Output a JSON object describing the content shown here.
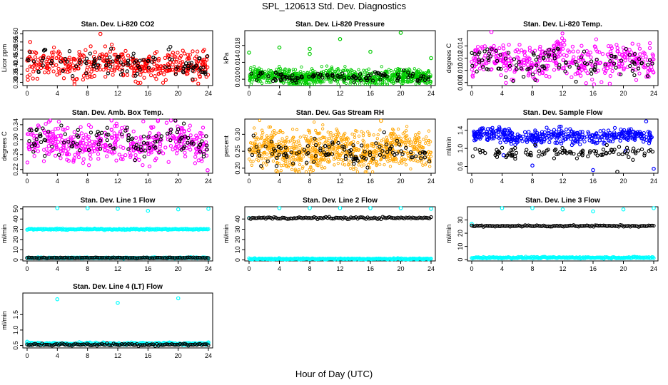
{
  "page": {
    "title": "SPL_120613  Std. Dev. Diagnostics",
    "xlabel": "Hour of Day (UTC)"
  },
  "chart_data": [
    {
      "type": "scatter",
      "title": "Stan. Dev. Li-820 CO2",
      "xlabel": "",
      "ylabel": "Licor ppm",
      "xlim": [
        0,
        24
      ],
      "ylim": [
        0.28,
        0.62
      ],
      "xticks": [
        0,
        4,
        8,
        12,
        16,
        20,
        24
      ],
      "yticks": [
        0.3,
        0.35,
        0.4,
        0.45,
        0.5,
        0.55,
        0.6
      ],
      "ytick_labels": [
        "0.30",
        "0.35",
        "0.40",
        "0.45",
        "0.50",
        "0.55",
        "0.60"
      ],
      "grid": false,
      "legend": "none",
      "series": [
        {
          "color": "#ff0000",
          "pattern": {
            "kind": "noise",
            "center": 0.41,
            "spread": 0.045,
            "count": 420
          },
          "extra_points": [
            [
              0.4,
              0.55
            ],
            [
              9.7,
              0.6
            ]
          ]
        },
        {
          "color": "#000000",
          "pattern": {
            "kind": "noise",
            "center": 0.41,
            "spread": 0.04,
            "count": 110
          }
        }
      ]
    },
    {
      "type": "scatter",
      "title": "Stan. Dev. Li-820 Pressure",
      "xlabel": "",
      "ylabel": "kPa",
      "xlim": [
        0,
        24
      ],
      "ylim": [
        0.0085,
        0.0215
      ],
      "xticks": [
        0,
        4,
        8,
        12,
        16,
        20,
        24
      ],
      "yticks": [
        0.01,
        0.014,
        0.018
      ],
      "ytick_labels": [
        "0.010",
        "0.014",
        "0.018"
      ],
      "grid": false,
      "legend": "none",
      "series": [
        {
          "color": "#00cc00",
          "pattern": {
            "kind": "band",
            "center": 0.0106,
            "spread": 0.0009,
            "count": 900
          },
          "extra_points": [
            [
              0,
              0.0163
            ],
            [
              4,
              0.0175
            ],
            [
              8,
              0.0172
            ],
            [
              8,
              0.016
            ],
            [
              12,
              0.0195
            ],
            [
              16,
              0.0165
            ],
            [
              20,
              0.021
            ],
            [
              24,
              0.015
            ]
          ]
        },
        {
          "color": "#000000",
          "pattern": {
            "kind": "noise",
            "center": 0.0105,
            "spread": 0.0006,
            "count": 110
          }
        }
      ]
    },
    {
      "type": "scatter",
      "title": "Stan. Dev. Li-820 Temp.",
      "xlabel": "",
      "ylabel": "degrees C",
      "xlim": [
        0,
        24
      ],
      "ylim": [
        0.0075,
        0.0165
      ],
      "xticks": [
        0,
        4,
        8,
        12,
        16,
        20,
        24
      ],
      "yticks": [
        0.008,
        0.01,
        0.012,
        0.014
      ],
      "ytick_labels": [
        "0.008",
        "0.010",
        "0.012",
        "0.014"
      ],
      "grid": false,
      "legend": "none",
      "series": [
        {
          "color": "#ff00ff",
          "pattern": {
            "kind": "noise",
            "center": 0.0116,
            "spread": 0.0014,
            "count": 420
          },
          "extra_points": [
            [
              2.6,
              0.0163
            ],
            [
              18.2,
              0.0078
            ]
          ]
        },
        {
          "color": "#000000",
          "pattern": {
            "kind": "noise",
            "center": 0.0113,
            "spread": 0.0012,
            "count": 110
          }
        }
      ]
    },
    {
      "type": "scatter",
      "title": "Stan. Dev. Amb. Box Temp.",
      "xlabel": "",
      "ylabel": "degrees C",
      "xlim": [
        0,
        24
      ],
      "ylim": [
        0.21,
        0.355
      ],
      "xticks": [
        0,
        4,
        8,
        12,
        16,
        20,
        24
      ],
      "yticks": [
        0.22,
        0.26,
        0.3,
        0.34
      ],
      "ytick_labels": [
        "0.22",
        "0.26",
        "0.30",
        "0.34"
      ],
      "grid": false,
      "legend": "none",
      "series": [
        {
          "color": "#ff00ff",
          "pattern": {
            "kind": "noise",
            "center": 0.29,
            "spread": 0.025,
            "count": 420
          },
          "extra_points": [
            [
              23.9,
              0.218
            ]
          ]
        },
        {
          "color": "#000000",
          "pattern": {
            "kind": "noise",
            "center": 0.295,
            "spread": 0.02,
            "count": 110
          }
        }
      ]
    },
    {
      "type": "scatter",
      "title": "Stan. Dev. Gas Stream RH",
      "xlabel": "",
      "ylabel": "percent",
      "xlim": [
        0,
        24
      ],
      "ylim": [
        0.185,
        0.345
      ],
      "xticks": [
        0,
        4,
        8,
        12,
        16,
        20,
        24
      ],
      "yticks": [
        0.2,
        0.25,
        0.3
      ],
      "ytick_labels": [
        "0.20",
        "0.25",
        "0.30"
      ],
      "grid": false,
      "legend": "none",
      "series": [
        {
          "color": "#ffa500",
          "pattern": {
            "kind": "band",
            "center": 0.255,
            "spread": 0.028,
            "count": 900
          },
          "extra_points": [
            [
              17.4,
              0.34
            ],
            [
              3.6,
              0.192
            ]
          ]
        },
        {
          "color": "#000000",
          "pattern": {
            "kind": "noise",
            "center": 0.245,
            "spread": 0.018,
            "count": 110
          }
        }
      ]
    },
    {
      "type": "scatter",
      "title": "Stan. Dev. Sample Flow",
      "xlabel": "",
      "ylabel": "ml/min",
      "xlim": [
        0,
        24
      ],
      "ylim": [
        0.45,
        1.65
      ],
      "xticks": [
        0,
        4,
        8,
        12,
        16,
        20,
        24
      ],
      "yticks": [
        0.6,
        1.0,
        1.4
      ],
      "ytick_labels": [
        "0.6",
        "1.0",
        "1.4"
      ],
      "grid": false,
      "legend": "none",
      "series": [
        {
          "color": "#0000ff",
          "pattern": {
            "kind": "noise",
            "center": 1.27,
            "spread": 0.08,
            "count": 420
          },
          "extra_points": [
            [
              16,
              0.52
            ],
            [
              8,
              0.62
            ],
            [
              24,
              0.55
            ],
            [
              20.3,
              0.95
            ],
            [
              4.2,
              0.85
            ],
            [
              23,
              1.6
            ]
          ]
        },
        {
          "color": "#000000",
          "pattern": {
            "kind": "noise",
            "center": 0.92,
            "spread": 0.07,
            "count": 110
          },
          "extra_points": [
            [
              19.2,
              0.48
            ]
          ]
        }
      ]
    },
    {
      "type": "scatter",
      "title": "Stan. Dev. Line 1 Flow",
      "xlabel": "",
      "ylabel": "ml/min",
      "xlim": [
        0,
        24
      ],
      "ylim": [
        -1,
        52
      ],
      "xticks": [
        0,
        4,
        8,
        12,
        16,
        20,
        24
      ],
      "yticks": [
        0,
        10,
        20,
        30,
        40,
        50
      ],
      "ytick_labels": [
        "0",
        "10",
        "20",
        "30",
        "40",
        "50"
      ],
      "grid": false,
      "legend": "none",
      "series": [
        {
          "color": "#00ffff",
          "pattern": {
            "kind": "line",
            "center": 30,
            "spread": 0.3,
            "count": 200
          },
          "extra_points": [
            [
              4,
              51
            ],
            [
              8,
              50.5
            ],
            [
              12,
              50
            ],
            [
              16,
              48
            ],
            [
              20,
              49.5
            ],
            [
              24,
              50
            ]
          ]
        },
        {
          "color": "#00ffff",
          "pattern": {
            "kind": "line",
            "center": 2,
            "spread": 0.3,
            "count": 200
          }
        },
        {
          "color": "#000000",
          "pattern": {
            "kind": "line",
            "center": 2,
            "spread": 0.2,
            "count": 110
          }
        }
      ]
    },
    {
      "type": "scatter",
      "title": "Stan. Dev. Line 2 Flow",
      "xlabel": "",
      "ylabel": "ml/min",
      "xlim": [
        0,
        24
      ],
      "ylim": [
        -1,
        52
      ],
      "xticks": [
        0,
        4,
        8,
        12,
        16,
        20,
        24
      ],
      "yticks": [
        0,
        10,
        20,
        30,
        40
      ],
      "ytick_labels": [
        "0",
        "10",
        "20",
        "30",
        "40"
      ],
      "grid": false,
      "legend": "none",
      "series": [
        {
          "color": "#00ffff",
          "pattern": {
            "kind": "line",
            "center": 1,
            "spread": 0.3,
            "count": 220
          },
          "extra_points": [
            [
              0,
              41
            ],
            [
              4,
              51
            ],
            [
              8,
              51
            ],
            [
              12,
              51
            ],
            [
              16,
              51
            ],
            [
              20,
              51
            ],
            [
              24,
              50
            ]
          ]
        },
        {
          "color": "#000000",
          "pattern": {
            "kind": "line",
            "center": 41,
            "spread": 0.5,
            "count": 110
          }
        }
      ]
    },
    {
      "type": "scatter",
      "title": "Stan. Dev. Line 3 Flow",
      "xlabel": "",
      "ylabel": "ml/min",
      "xlim": [
        0,
        24
      ],
      "ylim": [
        -1,
        40
      ],
      "xticks": [
        0,
        4,
        8,
        12,
        16,
        20,
        24
      ],
      "yticks": [
        0,
        10,
        20,
        30
      ],
      "ytick_labels": [
        "0",
        "10",
        "20",
        "30"
      ],
      "grid": false,
      "legend": "none",
      "series": [
        {
          "color": "#00ffff",
          "pattern": {
            "kind": "line",
            "center": 1.5,
            "spread": 0.3,
            "count": 220
          },
          "extra_points": [
            [
              0,
              27
            ],
            [
              4,
              39
            ],
            [
              8,
              39
            ],
            [
              12,
              38
            ],
            [
              16,
              36.5
            ],
            [
              20,
              38
            ],
            [
              24,
              39
            ]
          ]
        },
        {
          "color": "#000000",
          "pattern": {
            "kind": "line",
            "center": 25.5,
            "spread": 0.3,
            "count": 110
          }
        }
      ]
    },
    {
      "type": "scatter",
      "title": "Stan. Dev. Line 4 (LT) Flow",
      "xlabel": "",
      "ylabel": "ml/min",
      "xlim": [
        0,
        24
      ],
      "ylim": [
        0.42,
        2.2
      ],
      "xticks": [
        0,
        4,
        8,
        12,
        16,
        20,
        24
      ],
      "yticks": [
        0.5,
        1.0,
        1.5
      ],
      "ytick_labels": [
        "0.5",
        "1.0",
        "1.5"
      ],
      "grid": false,
      "legend": "none",
      "series": [
        {
          "color": "#00ffff",
          "pattern": {
            "kind": "line",
            "center": 0.56,
            "spread": 0.02,
            "count": 220
          },
          "extra_points": [
            [
              0,
              0.62
            ],
            [
              4,
              2.0
            ],
            [
              12,
              1.88
            ],
            [
              20,
              2.03
            ],
            [
              24,
              0.6
            ]
          ]
        },
        {
          "color": "#000000",
          "pattern": {
            "kind": "line",
            "center": 0.53,
            "spread": 0.02,
            "count": 110
          }
        }
      ]
    }
  ]
}
